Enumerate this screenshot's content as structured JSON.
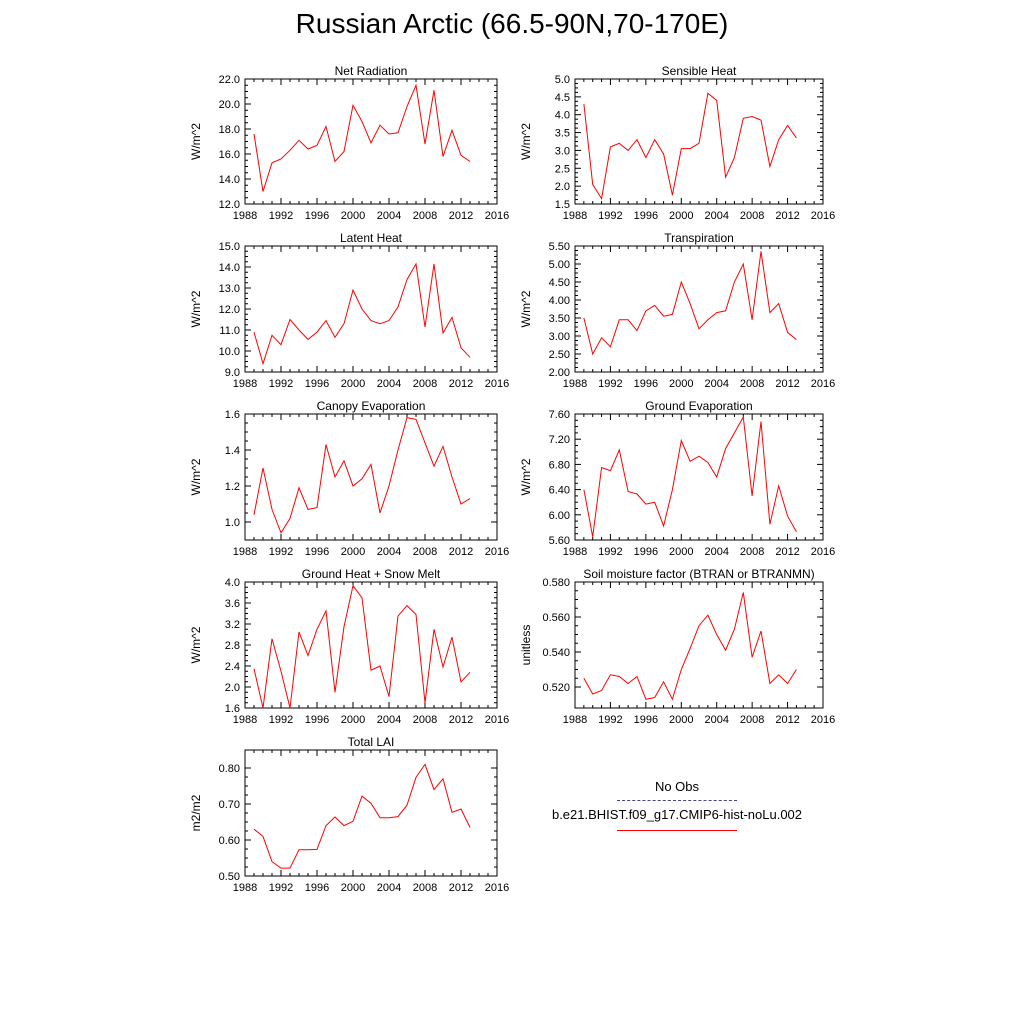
{
  "page": {
    "title": "Russian Arctic (66.5-90N,70-170E)"
  },
  "legend": {
    "obs_label": "No Obs",
    "obs_color": "#444488",
    "model_label": "b.e21.BHIST.f09_g17.CMIP6-hist-noLu.002",
    "model_color": "#ff0000"
  },
  "chart_data": [
    {
      "type": "line",
      "title": "Net Radiation",
      "ylabel": "W/m^2",
      "xlim": [
        1988,
        2016
      ],
      "ylim": [
        12.0,
        22.0
      ],
      "xticks": [
        "1988",
        "1992",
        "1996",
        "2000",
        "2004",
        "2008",
        "2012",
        "2016"
      ],
      "yticks": [
        "12.0",
        "14.0",
        "16.0",
        "18.0",
        "20.0",
        "22.0"
      ],
      "x": [
        1989,
        1990,
        1991,
        1992,
        1993,
        1994,
        1995,
        1996,
        1997,
        1998,
        1999,
        2000,
        2001,
        2002,
        2003,
        2004,
        2005,
        2006,
        2007,
        2008,
        2009,
        2010,
        2011,
        2012,
        2013
      ],
      "series": [
        {
          "values": [
            17.6,
            13.0,
            15.3,
            15.6,
            16.3,
            17.1,
            16.4,
            16.7,
            18.2,
            15.4,
            16.2,
            19.9,
            18.6,
            16.9,
            18.3,
            17.6,
            17.7,
            19.8,
            21.5,
            16.8,
            21.1,
            15.8,
            17.9,
            15.9,
            15.4
          ]
        }
      ]
    },
    {
      "type": "line",
      "title": "Sensible Heat",
      "ylabel": "W/m^2",
      "xlim": [
        1988,
        2016
      ],
      "ylim": [
        1.5,
        5.0
      ],
      "xticks": [
        "1988",
        "1992",
        "1996",
        "2000",
        "2004",
        "2008",
        "2012",
        "2016"
      ],
      "yticks": [
        "1.5",
        "2.0",
        "2.5",
        "3.0",
        "3.5",
        "4.0",
        "4.5",
        "5.0"
      ],
      "x": [
        1989,
        1990,
        1991,
        1992,
        1993,
        1994,
        1995,
        1996,
        1997,
        1998,
        1999,
        2000,
        2001,
        2002,
        2003,
        2004,
        2005,
        2006,
        2007,
        2008,
        2009,
        2010,
        2011,
        2012,
        2013
      ],
      "series": [
        {
          "values": [
            4.3,
            2.05,
            1.65,
            3.1,
            3.2,
            3.0,
            3.3,
            2.8,
            3.3,
            2.9,
            1.75,
            3.05,
            3.05,
            3.2,
            4.6,
            4.4,
            2.25,
            2.8,
            3.9,
            3.95,
            3.85,
            2.55,
            3.3,
            3.7,
            3.35
          ]
        }
      ]
    },
    {
      "type": "line",
      "title": "Latent Heat",
      "ylabel": "W/m^2",
      "xlim": [
        1988,
        2016
      ],
      "ylim": [
        9.0,
        15.0
      ],
      "xticks": [
        "1988",
        "1992",
        "1996",
        "2000",
        "2004",
        "2008",
        "2012",
        "2016"
      ],
      "yticks": [
        "9.0",
        "10.0",
        "11.0",
        "12.0",
        "13.0",
        "14.0",
        "15.0"
      ],
      "x": [
        1989,
        1990,
        1991,
        1992,
        1993,
        1994,
        1995,
        1996,
        1997,
        1998,
        1999,
        2000,
        2001,
        2002,
        2003,
        2004,
        2005,
        2006,
        2007,
        2008,
        2009,
        2010,
        2011,
        2012,
        2013
      ],
      "series": [
        {
          "values": [
            10.9,
            9.4,
            10.75,
            10.3,
            11.5,
            11.0,
            10.55,
            10.9,
            11.45,
            10.65,
            11.3,
            12.9,
            12.0,
            11.45,
            11.3,
            11.45,
            12.1,
            13.4,
            14.15,
            11.15,
            14.15,
            10.85,
            11.6,
            10.15,
            9.7
          ]
        }
      ]
    },
    {
      "type": "line",
      "title": "Transpiration",
      "ylabel": "W/m^2",
      "xlim": [
        1988,
        2016
      ],
      "ylim": [
        2.0,
        5.5
      ],
      "xticks": [
        "1988",
        "1992",
        "1996",
        "2000",
        "2004",
        "2008",
        "2012",
        "2016"
      ],
      "yticks": [
        "2.00",
        "2.50",
        "3.00",
        "3.50",
        "4.00",
        "4.50",
        "5.00",
        "5.50"
      ],
      "x": [
        1989,
        1990,
        1991,
        1992,
        1993,
        1994,
        1995,
        1996,
        1997,
        1998,
        1999,
        2000,
        2001,
        2002,
        2003,
        2004,
        2005,
        2006,
        2007,
        2008,
        2009,
        2010,
        2011,
        2012,
        2013
      ],
      "series": [
        {
          "values": [
            3.5,
            2.5,
            2.95,
            2.7,
            3.45,
            3.45,
            3.15,
            3.7,
            3.85,
            3.55,
            3.6,
            4.5,
            3.9,
            3.2,
            3.45,
            3.65,
            3.7,
            4.5,
            5.0,
            3.45,
            5.35,
            3.65,
            3.9,
            3.1,
            2.9
          ]
        }
      ]
    },
    {
      "type": "line",
      "title": "Canopy Evaporation",
      "ylabel": "W/m^2",
      "xlim": [
        1988,
        2016
      ],
      "ylim": [
        0.9,
        1.6
      ],
      "xticks": [
        "1988",
        "1992",
        "1996",
        "2000",
        "2004",
        "2008",
        "2012",
        "2016"
      ],
      "yticks": [
        "1.0",
        "1.2",
        "1.4",
        "1.6"
      ],
      "x": [
        1989,
        1990,
        1991,
        1992,
        1993,
        1994,
        1995,
        1996,
        1997,
        1998,
        1999,
        2000,
        2001,
        2002,
        2003,
        2004,
        2005,
        2006,
        2007,
        2008,
        2009,
        2010,
        2011,
        2012,
        2013
      ],
      "series": [
        {
          "values": [
            1.04,
            1.3,
            1.07,
            0.94,
            1.02,
            1.19,
            1.07,
            1.08,
            1.43,
            1.25,
            1.34,
            1.2,
            1.24,
            1.32,
            1.05,
            1.2,
            1.4,
            1.58,
            1.57,
            1.44,
            1.31,
            1.42,
            1.25,
            1.1,
            1.13
          ]
        }
      ]
    },
    {
      "type": "line",
      "title": "Ground Evaporation",
      "ylabel": "W/m^2",
      "xlim": [
        1988,
        2016
      ],
      "ylim": [
        5.6,
        7.6
      ],
      "xticks": [
        "1988",
        "1992",
        "1996",
        "2000",
        "2004",
        "2008",
        "2012",
        "2016"
      ],
      "yticks": [
        "5.60",
        "6.00",
        "6.40",
        "6.80",
        "7.20",
        "7.60"
      ],
      "x": [
        1989,
        1990,
        1991,
        1992,
        1993,
        1994,
        1995,
        1996,
        1997,
        1998,
        1999,
        2000,
        2001,
        2002,
        2003,
        2004,
        2005,
        2006,
        2007,
        2008,
        2009,
        2010,
        2011,
        2012,
        2013
      ],
      "series": [
        {
          "values": [
            6.4,
            5.65,
            6.75,
            6.7,
            7.03,
            6.37,
            6.33,
            6.17,
            6.2,
            5.82,
            6.4,
            7.18,
            6.85,
            6.93,
            6.83,
            6.6,
            7.05,
            7.3,
            7.55,
            6.3,
            7.48,
            5.85,
            6.46,
            5.98,
            5.73
          ]
        }
      ]
    },
    {
      "type": "line",
      "title": "Ground Heat + Snow Melt",
      "ylabel": "W/m^2",
      "xlim": [
        1988,
        2016
      ],
      "ylim": [
        1.6,
        4.0
      ],
      "xticks": [
        "1988",
        "1992",
        "1996",
        "2000",
        "2004",
        "2008",
        "2012",
        "2016"
      ],
      "yticks": [
        "1.6",
        "2.0",
        "2.4",
        "2.8",
        "3.2",
        "3.6",
        "4.0"
      ],
      "x": [
        1989,
        1990,
        1991,
        1992,
        1993,
        1994,
        1995,
        1996,
        1997,
        1998,
        1999,
        2000,
        2001,
        2002,
        2003,
        2004,
        2005,
        2006,
        2007,
        2008,
        2009,
        2010,
        2011,
        2012,
        2013
      ],
      "series": [
        {
          "values": [
            2.35,
            1.6,
            2.92,
            2.3,
            1.6,
            3.05,
            2.6,
            3.1,
            3.45,
            1.9,
            3.15,
            3.93,
            3.7,
            2.32,
            2.4,
            1.82,
            3.35,
            3.55,
            3.38,
            1.7,
            3.1,
            2.38,
            2.95,
            2.1,
            2.28
          ]
        }
      ]
    },
    {
      "type": "line",
      "title": "Soil moisture factor (BTRAN or BTRANMN)",
      "ylabel": "unitless",
      "xlim": [
        1988,
        2016
      ],
      "ylim": [
        0.508,
        0.58
      ],
      "xticks": [
        "1988",
        "1992",
        "1996",
        "2000",
        "2004",
        "2008",
        "2012",
        "2016"
      ],
      "yticks": [
        "0.520",
        "0.540",
        "0.560",
        "0.580"
      ],
      "x": [
        1989,
        1990,
        1991,
        1992,
        1993,
        1994,
        1995,
        1996,
        1997,
        1998,
        1999,
        2000,
        2001,
        2002,
        2003,
        2004,
        2005,
        2006,
        2007,
        2008,
        2009,
        2010,
        2011,
        2012,
        2013
      ],
      "series": [
        {
          "values": [
            0.525,
            0.516,
            0.518,
            0.527,
            0.526,
            0.522,
            0.526,
            0.513,
            0.514,
            0.523,
            0.513,
            0.53,
            0.542,
            0.555,
            0.561,
            0.55,
            0.541,
            0.553,
            0.574,
            0.537,
            0.552,
            0.522,
            0.527,
            0.522,
            0.53
          ]
        }
      ]
    },
    {
      "type": "line",
      "title": "Total LAI",
      "ylabel": "m2/m2",
      "xlim": [
        1988,
        2016
      ],
      "ylim": [
        0.5,
        0.85
      ],
      "xticks": [
        "1988",
        "1992",
        "1996",
        "2000",
        "2004",
        "2008",
        "2012",
        "2016"
      ],
      "yticks": [
        "0.50",
        "0.60",
        "0.70",
        "0.80"
      ],
      "x": [
        1989,
        1990,
        1991,
        1992,
        1993,
        1994,
        1995,
        1996,
        1997,
        1998,
        1999,
        2000,
        2001,
        2002,
        2003,
        2004,
        2005,
        2006,
        2007,
        2008,
        2009,
        2010,
        2011,
        2012,
        2013
      ],
      "series": [
        {
          "values": [
            0.63,
            0.61,
            0.54,
            0.522,
            0.522,
            0.573,
            0.573,
            0.574,
            0.64,
            0.664,
            0.64,
            0.652,
            0.722,
            0.702,
            0.662,
            0.662,
            0.665,
            0.697,
            0.774,
            0.81,
            0.74,
            0.77,
            0.677,
            0.686,
            0.635
          ]
        }
      ]
    }
  ]
}
